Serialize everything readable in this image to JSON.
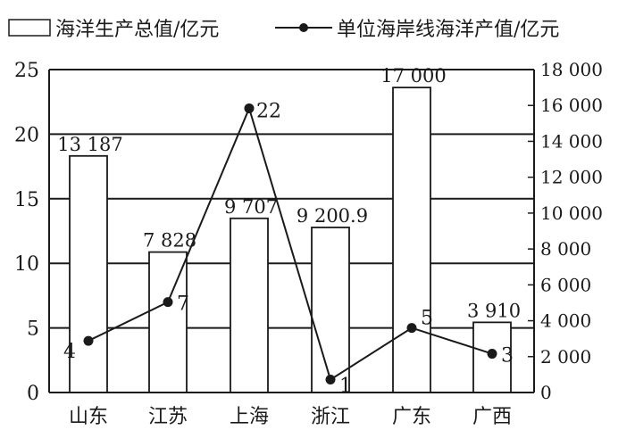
{
  "chart_data": {
    "type": "bar+line",
    "title": "",
    "categories": [
      "山东",
      "江苏",
      "上海",
      "浙江",
      "广东",
      "广西"
    ],
    "series": [
      {
        "name": "海洋生产总值/亿元",
        "type": "bar",
        "axis": "right",
        "values": [
          13187,
          7828,
          9707,
          9200.9,
          17000,
          3910
        ],
        "labels": [
          "13 187",
          "7 828",
          "9 707",
          "9 200.9",
          "17 000",
          "3 910"
        ]
      },
      {
        "name": "单位海岸线海洋产值/亿元",
        "type": "line",
        "axis": "left",
        "values": [
          4,
          7,
          22,
          1,
          5,
          3
        ],
        "labels": [
          "4",
          "7",
          "22",
          "1",
          "5",
          "3"
        ]
      }
    ],
    "left_axis": {
      "min": 0,
      "max": 25,
      "ticks": [
        0,
        5,
        10,
        15,
        20,
        25
      ],
      "tick_labels": [
        "0",
        "5",
        "10",
        "15",
        "20",
        "25"
      ]
    },
    "right_axis": {
      "min": 0,
      "max": 18000,
      "ticks": [
        0,
        2000,
        4000,
        6000,
        8000,
        10000,
        12000,
        14000,
        16000,
        18000
      ],
      "tick_labels": [
        "0",
        "2 000",
        "4 000",
        "6 000",
        "8 000",
        "10 000",
        "12 000",
        "14 000",
        "16 000",
        "18 000"
      ]
    },
    "grid": "horizontal",
    "legend_position": "top"
  }
}
